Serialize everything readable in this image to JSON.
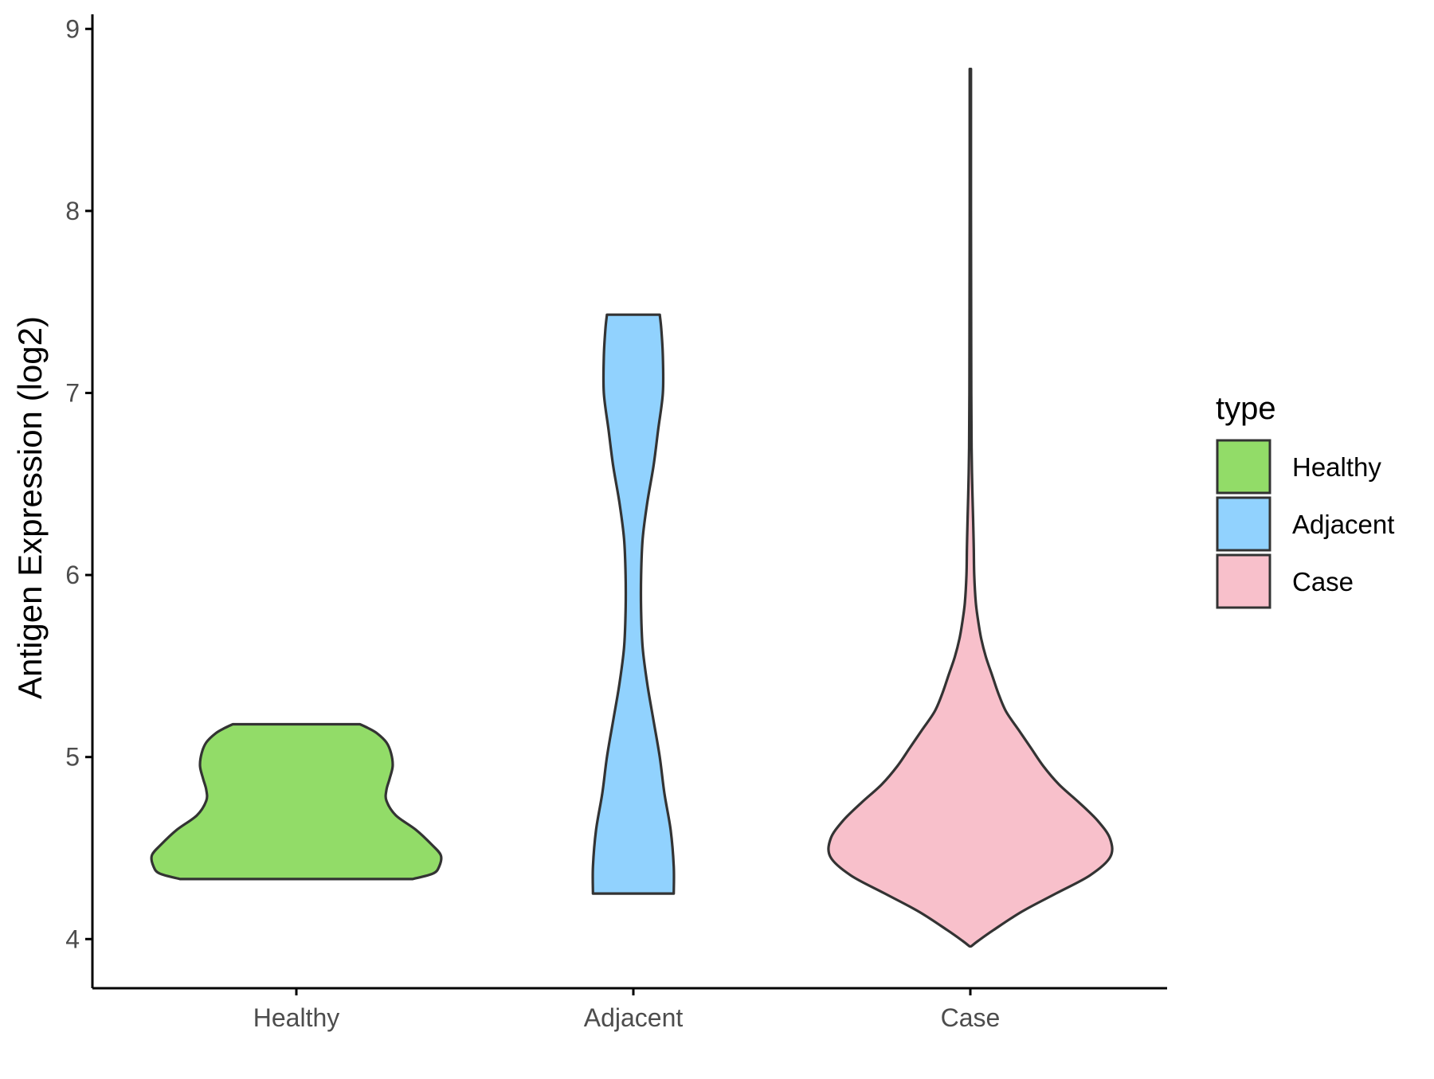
{
  "chart_data": {
    "type": "violin",
    "title": "",
    "xlabel": "",
    "ylabel": "Antigen Expression (log2)",
    "ylim": [
      3.73,
      9.08
    ],
    "yticks": [
      4,
      5,
      6,
      7,
      8,
      9
    ],
    "categories": [
      "Healthy",
      "Adjacent",
      "Case"
    ],
    "grid": false,
    "legend": {
      "title": "type",
      "position": "right",
      "entries": [
        "Healthy",
        "Adjacent",
        "Case"
      ]
    },
    "series": [
      {
        "name": "Healthy",
        "color": "#92dc68",
        "min": 4.33,
        "max": 5.18,
        "density": [
          [
            4.33,
            0.75
          ],
          [
            4.36,
            0.88
          ],
          [
            4.4,
            0.92
          ],
          [
            4.46,
            0.93
          ],
          [
            4.52,
            0.87
          ],
          [
            4.6,
            0.77
          ],
          [
            4.68,
            0.64
          ],
          [
            4.76,
            0.58
          ],
          [
            4.82,
            0.58
          ],
          [
            4.88,
            0.6
          ],
          [
            4.95,
            0.62
          ],
          [
            5.02,
            0.61
          ],
          [
            5.08,
            0.58
          ],
          [
            5.13,
            0.52
          ],
          [
            5.16,
            0.46
          ],
          [
            5.18,
            0.41
          ]
        ]
      },
      {
        "name": "Adjacent",
        "color": "#91d2fe",
        "min": 4.25,
        "max": 7.43,
        "density": [
          [
            4.25,
            0.26
          ],
          [
            4.4,
            0.26
          ],
          [
            4.6,
            0.24
          ],
          [
            4.8,
            0.2
          ],
          [
            5.0,
            0.17
          ],
          [
            5.2,
            0.13
          ],
          [
            5.4,
            0.09
          ],
          [
            5.6,
            0.06
          ],
          [
            5.8,
            0.05
          ],
          [
            6.0,
            0.05
          ],
          [
            6.2,
            0.06
          ],
          [
            6.4,
            0.09
          ],
          [
            6.6,
            0.13
          ],
          [
            6.8,
            0.16
          ],
          [
            7.0,
            0.19
          ],
          [
            7.2,
            0.19
          ],
          [
            7.35,
            0.18
          ],
          [
            7.43,
            0.17
          ]
        ]
      },
      {
        "name": "Case",
        "color": "#f8c0cb",
        "min": 3.96,
        "max": 8.78,
        "density": [
          [
            3.96,
            0.005
          ],
          [
            3.99,
            0.05
          ],
          [
            4.05,
            0.15
          ],
          [
            4.15,
            0.33
          ],
          [
            4.25,
            0.55
          ],
          [
            4.35,
            0.77
          ],
          [
            4.45,
            0.9
          ],
          [
            4.55,
            0.9
          ],
          [
            4.65,
            0.82
          ],
          [
            4.75,
            0.7
          ],
          [
            4.85,
            0.57
          ],
          [
            4.95,
            0.47
          ],
          [
            5.05,
            0.39
          ],
          [
            5.15,
            0.31
          ],
          [
            5.25,
            0.23
          ],
          [
            5.35,
            0.18
          ],
          [
            5.45,
            0.14
          ],
          [
            5.55,
            0.1
          ],
          [
            5.65,
            0.07
          ],
          [
            5.75,
            0.05
          ],
          [
            5.85,
            0.035
          ],
          [
            6.0,
            0.025
          ],
          [
            6.15,
            0.022
          ],
          [
            6.3,
            0.018
          ],
          [
            6.5,
            0.012
          ],
          [
            6.7,
            0.008
          ],
          [
            7.0,
            0.006
          ],
          [
            7.5,
            0.005
          ],
          [
            8.0,
            0.004
          ],
          [
            8.5,
            0.004
          ],
          [
            8.78,
            0.004
          ]
        ]
      }
    ]
  }
}
